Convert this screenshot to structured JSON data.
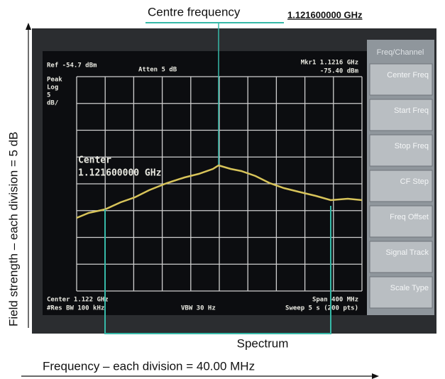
{
  "annotations": {
    "centre_label": "Centre frequency",
    "centre_value": "1.121600000 GHz",
    "spectrum": "Spectrum",
    "x_axis": "Frequency – each division = 40.00 MHz",
    "y_axis": "Field strength – each division = 5 dB"
  },
  "screen": {
    "header": {
      "ref": "Ref -54.7 dBm",
      "atten": "Atten 5 dB",
      "marker": "Mkr1 1.1216 GHz",
      "marker_level": "-75.40 dBm"
    },
    "scale": [
      "Peak",
      "Log",
      "5",
      "dB/"
    ],
    "center_label": "Center",
    "center_value": "1.121600000 GHz",
    "footer": {
      "center": "Center 1.122 GHz",
      "span": "Span 400 MHz",
      "res_bw": "#Res BW 100 kHz",
      "vbw": "VBW 30 Hz",
      "sweep": "Sweep 5 s (200 pts)"
    }
  },
  "menu": {
    "title": "Freq/Channel",
    "items": [
      "Center Freq",
      "Start Freq",
      "Stop Freq",
      "CF Step",
      "Freq Offset",
      "Signal Track",
      "Scale Type"
    ]
  }
}
